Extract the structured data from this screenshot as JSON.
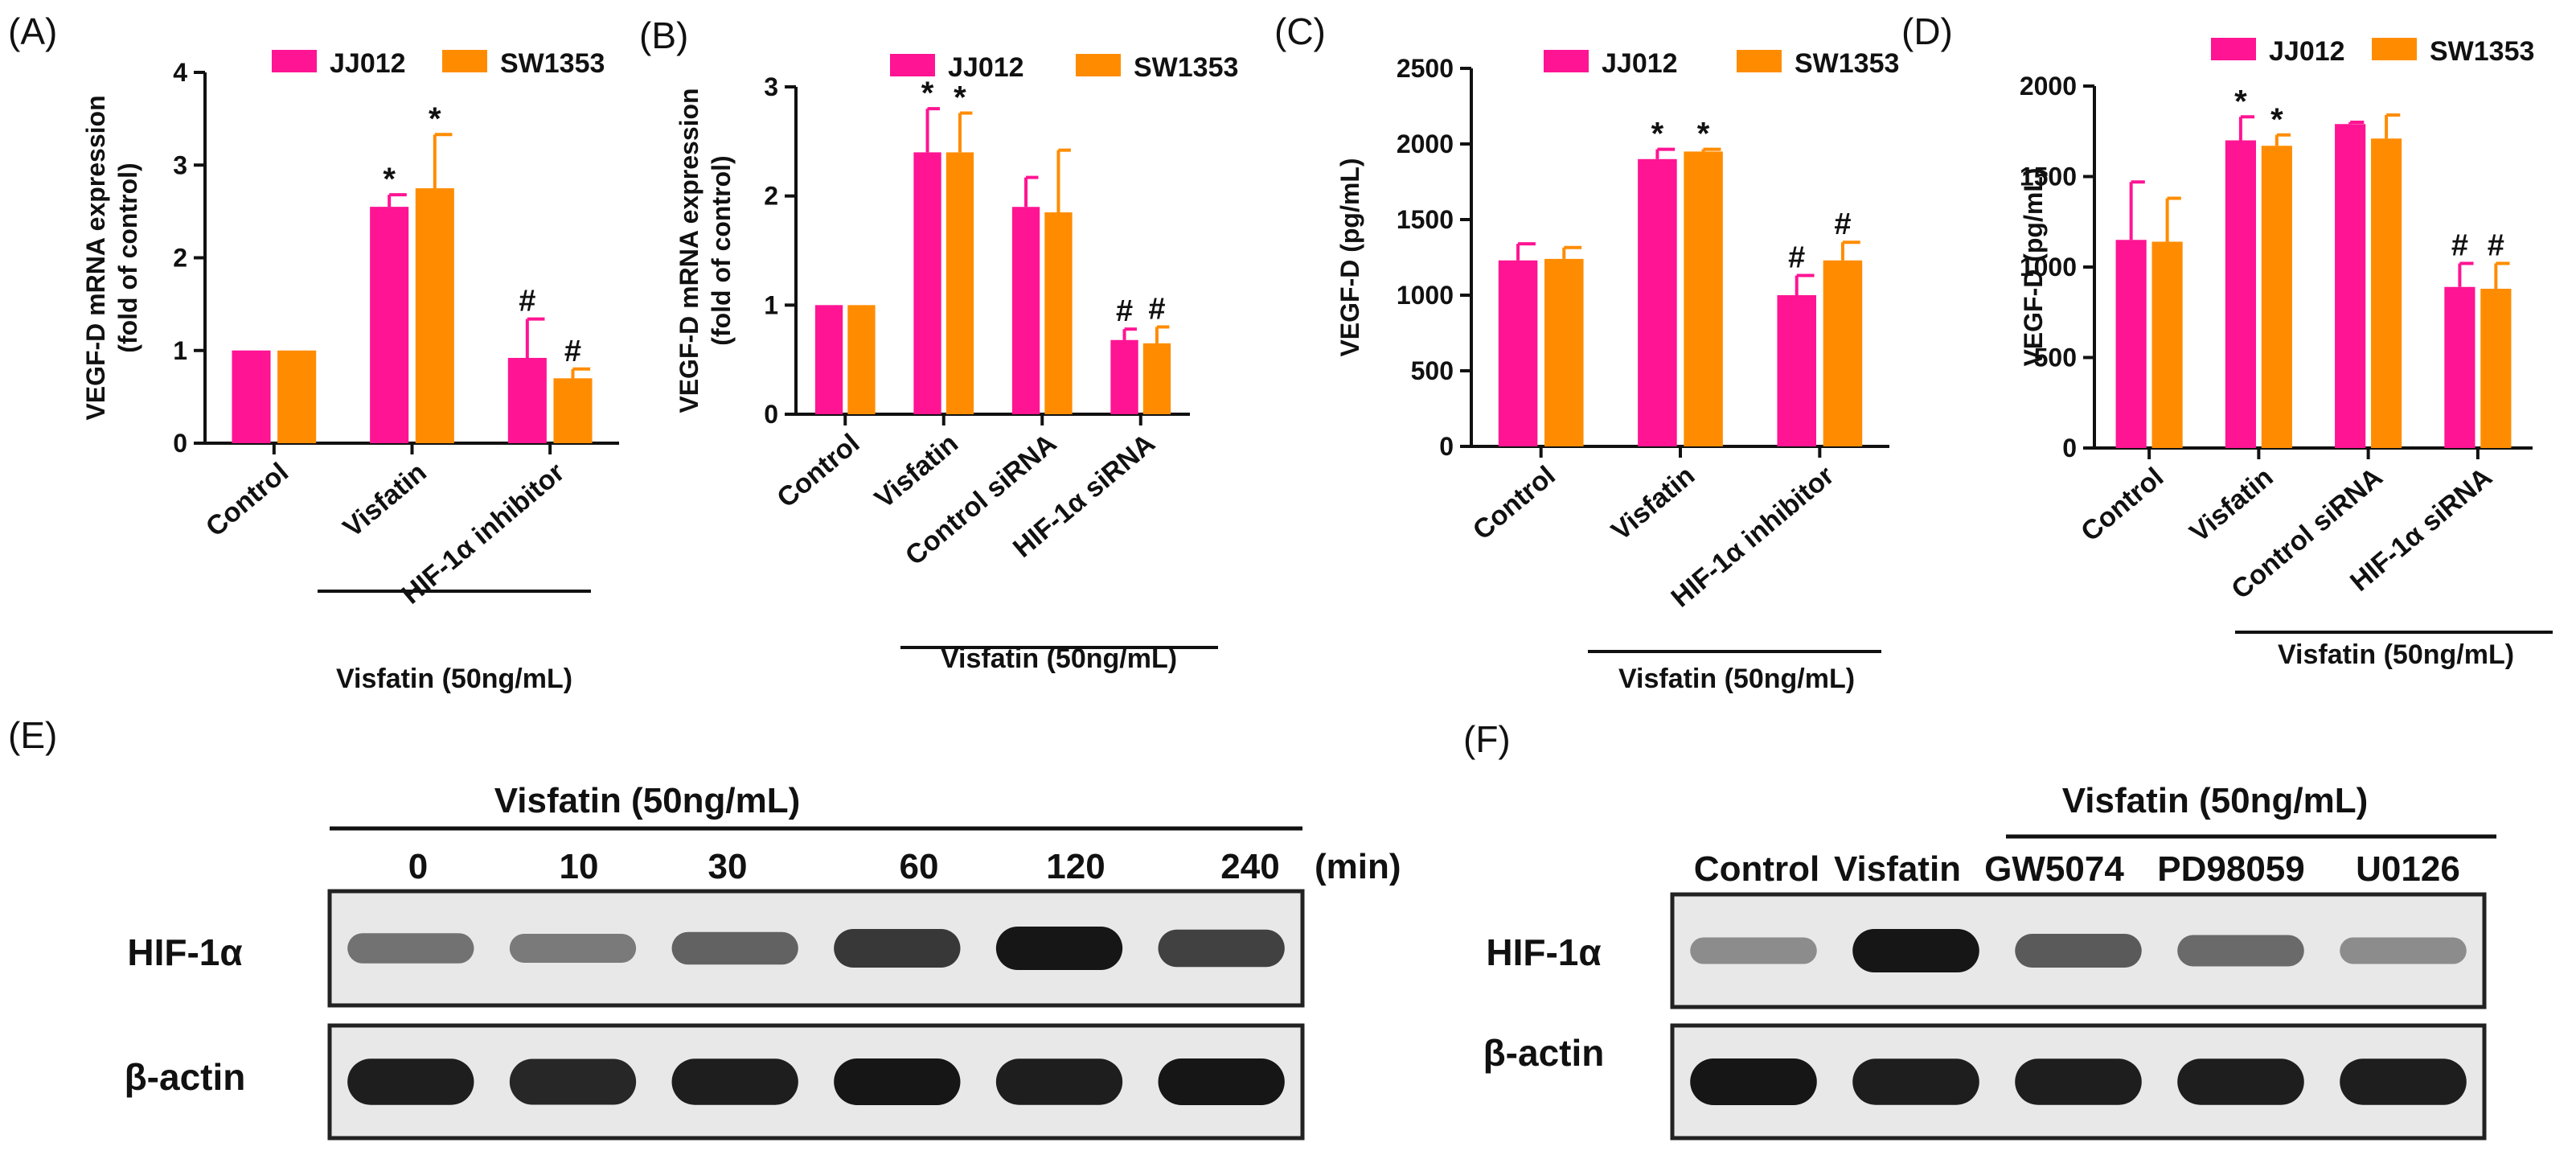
{
  "colors": {
    "series1": "#ff1493",
    "series2": "#ff8c00",
    "axis": "#111111",
    "blot_bg": "#e8e8e8",
    "band": "#161616"
  },
  "chart_data": [
    {
      "panel": "(A)",
      "type": "bar",
      "categories": [
        "Control",
        "Visfatin",
        "HIF-1α inhibitor"
      ],
      "group_label": "Visfatin (50ng/mL)",
      "ylabel": "VEGF-D mRNA expression\n(fold of control)",
      "ylim": [
        0,
        4
      ],
      "yticks": [
        0,
        1,
        2,
        3,
        4
      ],
      "series": [
        {
          "name": "JJ012",
          "values": [
            1.0,
            2.55,
            0.92
          ],
          "errors": [
            0,
            0.13,
            0.42
          ],
          "marks": [
            "",
            "*",
            "#"
          ]
        },
        {
          "name": "SW1353",
          "values": [
            1.0,
            2.75,
            0.7
          ],
          "errors": [
            0,
            0.58,
            0.1
          ],
          "marks": [
            "",
            "*",
            "#"
          ]
        }
      ]
    },
    {
      "panel": "(B)",
      "type": "bar",
      "categories": [
        "Control",
        "Visfatin",
        "Control siRNA",
        "HIF-1α siRNA"
      ],
      "group_label": "Visfatin (50ng/mL)",
      "ylabel": "VEGF-D mRNA expression\n(fold of control)",
      "ylim": [
        0,
        3
      ],
      "yticks": [
        0,
        1,
        2,
        3
      ],
      "series": [
        {
          "name": "JJ012",
          "values": [
            1.0,
            2.4,
            1.9,
            0.68
          ],
          "errors": [
            0,
            0.4,
            0.27,
            0.1
          ],
          "marks": [
            "",
            "*",
            "",
            "#"
          ]
        },
        {
          "name": "SW1353",
          "values": [
            1.0,
            2.4,
            1.85,
            0.65
          ],
          "errors": [
            0,
            0.36,
            0.57,
            0.15
          ],
          "marks": [
            "",
            "*",
            "",
            "#"
          ]
        }
      ]
    },
    {
      "panel": "(C)",
      "type": "bar",
      "categories": [
        "Control",
        "Visfatin",
        "HIF-1α  inhibitor"
      ],
      "group_label": "Visfatin (50ng/mL)",
      "ylabel": "VEGF-D (pg/mL)",
      "ylim": [
        0,
        2500
      ],
      "yticks": [
        0,
        500,
        1000,
        1500,
        2000,
        2500
      ],
      "series": [
        {
          "name": "JJ012",
          "values": [
            1230,
            1900,
            1000
          ],
          "errors": [
            110,
            65,
            130
          ],
          "marks": [
            "",
            "*",
            "#"
          ]
        },
        {
          "name": "SW1353",
          "values": [
            1240,
            1950,
            1230
          ],
          "errors": [
            75,
            15,
            120
          ],
          "marks": [
            "",
            "*",
            "#"
          ]
        }
      ]
    },
    {
      "panel": "(D)",
      "type": "bar",
      "categories": [
        "Control",
        "Visfatin",
        "Control siRNA",
        "HIF-1α  siRNA"
      ],
      "group_label": "Visfatin (50ng/mL)",
      "ylabel": "VEGF-D (pg/mL)",
      "ylim": [
        0,
        2000
      ],
      "yticks": [
        0,
        500,
        1000,
        1500,
        2000
      ],
      "series": [
        {
          "name": "JJ012",
          "values": [
            1150,
            1700,
            1790,
            890
          ],
          "errors": [
            320,
            130,
            10,
            130
          ],
          "marks": [
            "",
            "*",
            "",
            "#"
          ]
        },
        {
          "name": "SW1353",
          "values": [
            1140,
            1670,
            1710,
            880
          ],
          "errors": [
            240,
            60,
            130,
            140
          ],
          "marks": [
            "",
            "*",
            "",
            "#"
          ]
        }
      ]
    }
  ],
  "blots": [
    {
      "panel": "(E)",
      "treatment": "Visfatin (50ng/mL)",
      "lanes": [
        "0",
        "10",
        "30",
        "60",
        "120",
        "240"
      ],
      "lane_unit": "(min)",
      "rows": [
        {
          "label": "HIF-1α",
          "intensity": [
            0.45,
            0.4,
            0.55,
            0.8,
            1.0,
            0.75
          ]
        },
        {
          "label": "β-actin",
          "intensity": [
            0.95,
            0.9,
            0.95,
            1.0,
            0.95,
            1.0
          ]
        }
      ]
    },
    {
      "panel": "(F)",
      "treatment": "Visfatin (50ng/mL)",
      "lanes": [
        "Control",
        "Visfatin",
        "GW5074",
        "PD98059",
        "U0126"
      ],
      "rows": [
        {
          "label": "HIF-1α",
          "intensity": [
            0.3,
            1.0,
            0.6,
            0.5,
            0.3
          ]
        },
        {
          "label": "β-actin",
          "intensity": [
            1.0,
            0.95,
            0.95,
            0.95,
            0.95
          ]
        }
      ]
    }
  ]
}
